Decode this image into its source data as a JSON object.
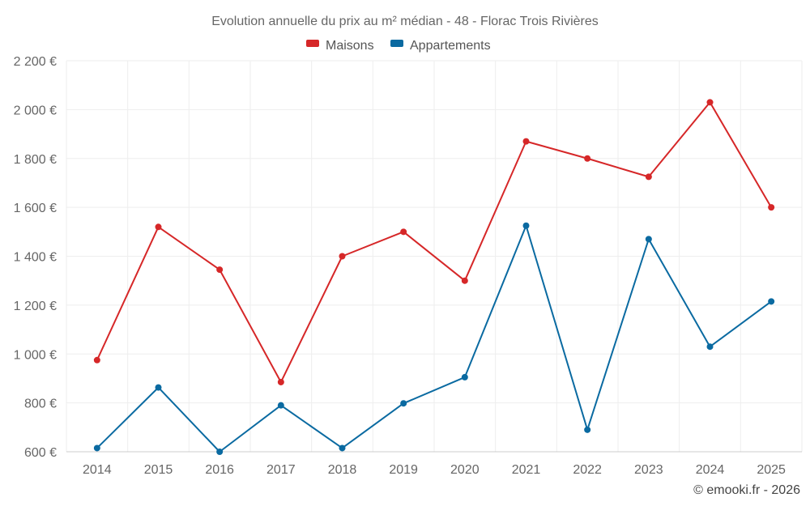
{
  "chart_data": {
    "type": "line",
    "title": "Evolution annuelle du prix au m² médian - 48 - Florac Trois Rivières",
    "categories": [
      "2014",
      "2015",
      "2016",
      "2017",
      "2018",
      "2019",
      "2020",
      "2021",
      "2022",
      "2023",
      "2024",
      "2025"
    ],
    "series": [
      {
        "name": "Maisons",
        "color": "#d62728",
        "values": [
          975,
          1520,
          1345,
          885,
          1400,
          1500,
          1300,
          1870,
          1800,
          1725,
          2030,
          1600
        ]
      },
      {
        "name": "Appartements",
        "color": "#0a6aa1",
        "values": [
          615,
          863,
          600,
          790,
          615,
          798,
          905,
          1525,
          690,
          1470,
          1030,
          1215
        ]
      }
    ],
    "ylim": [
      600,
      2200
    ],
    "y_ticks": [
      600,
      800,
      1000,
      1200,
      1400,
      1600,
      1800,
      2000,
      2200
    ],
    "y_tick_labels": [
      "600 €",
      "800 €",
      "1 000 €",
      "1 200 €",
      "1 400 €",
      "1 600 €",
      "1 800 €",
      "2 000 €",
      "2 200 €"
    ],
    "xlabel": "",
    "ylabel": "",
    "grid": true,
    "legend_position": "top-center"
  },
  "credit": "© emooki.fr - 2026"
}
